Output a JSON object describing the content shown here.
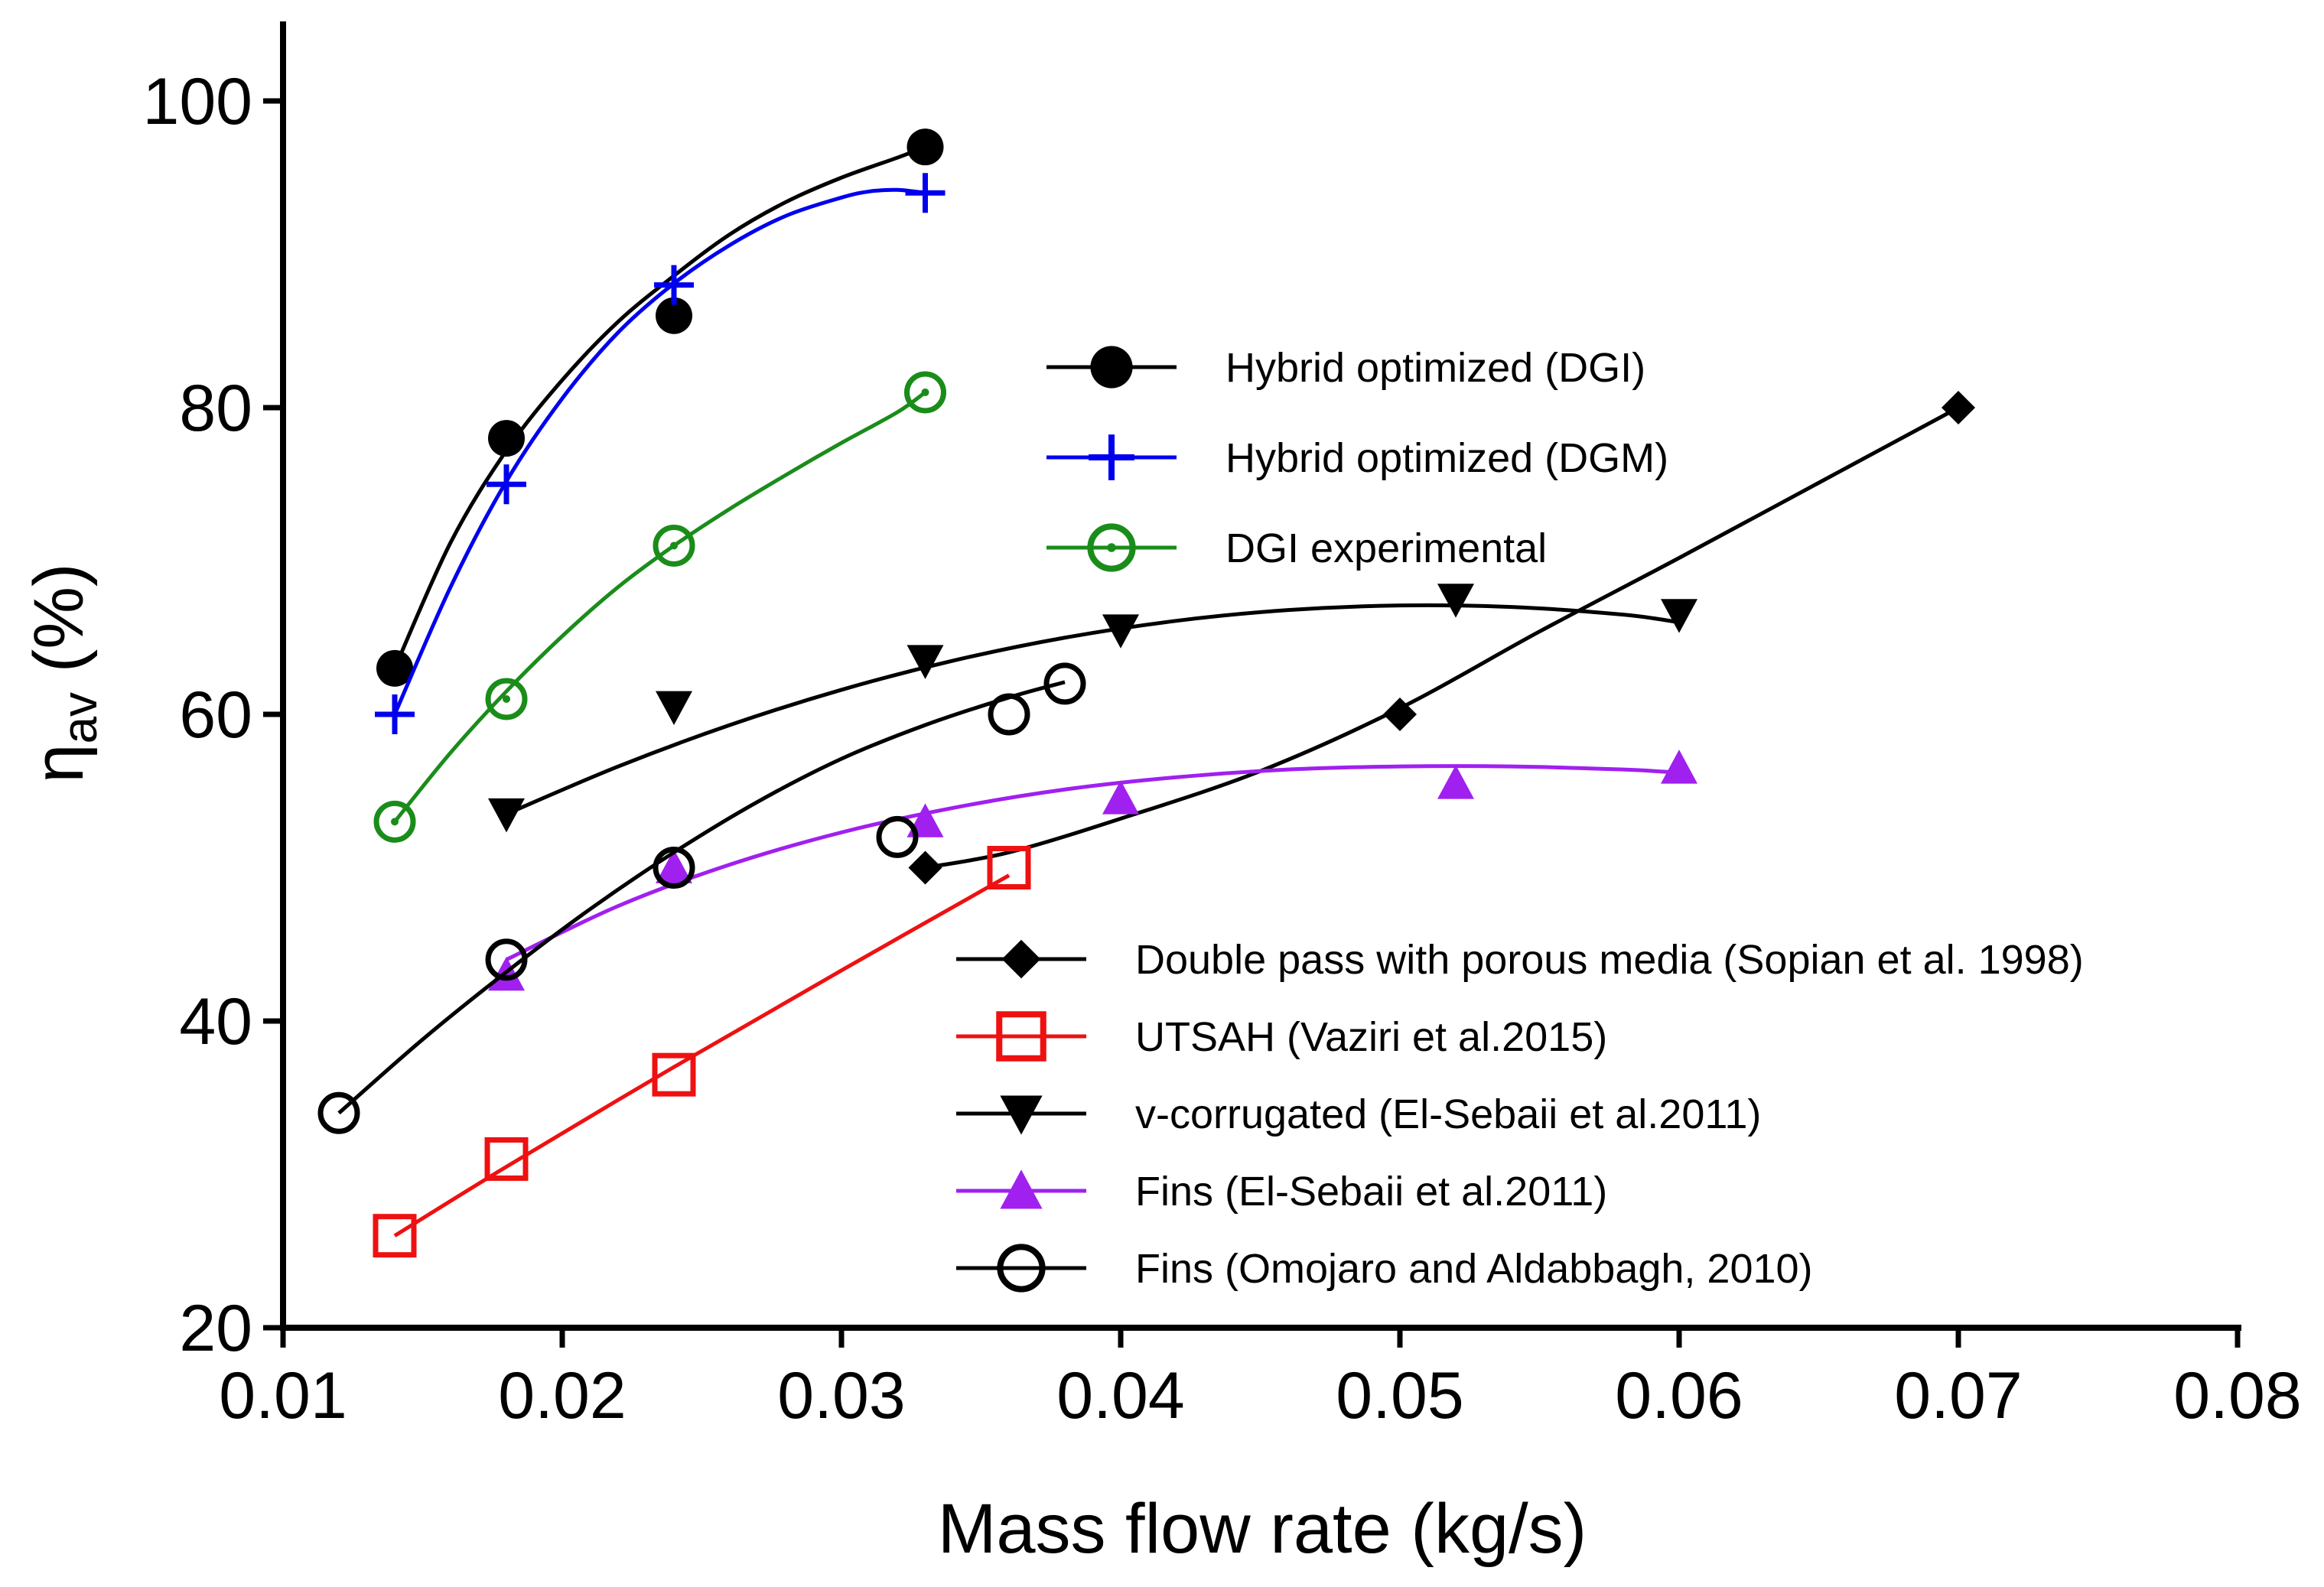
{
  "chart_data": {
    "type": "scatter",
    "xlabel": "Mass flow rate (kg/s)",
    "ylabel": "η",
    "ylabel_sub": "av",
    "ylabel_unit": " (%)",
    "xlim": [
      0.01,
      0.08
    ],
    "ylim": [
      20,
      100
    ],
    "xticks": [
      "0.01",
      "0.02",
      "0.03",
      "0.04",
      "0.05",
      "0.06",
      "0.07",
      "0.08"
    ],
    "yticks": [
      "20",
      "40",
      "60",
      "80",
      "100"
    ],
    "xtick_values": [
      0.01,
      0.02,
      0.03,
      0.04,
      0.05,
      0.06,
      0.07,
      0.08
    ],
    "ytick_values": [
      20,
      40,
      60,
      80,
      100
    ],
    "grid": false,
    "series": [
      {
        "name": "Hybrid optimized (DGI)",
        "color": "#000000",
        "marker": "filled-circle",
        "x": [
          0.014,
          0.018,
          0.024,
          0.033
        ],
        "y": [
          63,
          78,
          86,
          97
        ],
        "fit": [
          [
            0.014,
            63
          ],
          [
            0.016,
            71.2
          ],
          [
            0.018,
            77.2
          ],
          [
            0.02,
            81.8
          ],
          [
            0.022,
            85.6
          ],
          [
            0.024,
            88.6
          ],
          [
            0.026,
            91.3
          ],
          [
            0.028,
            93.4
          ],
          [
            0.03,
            95.0
          ],
          [
            0.032,
            96.3
          ],
          [
            0.033,
            97
          ]
        ]
      },
      {
        "name": "Hybrid optimized (DGM)",
        "color": "#0000ee",
        "marker": "plus",
        "x": [
          0.014,
          0.018,
          0.024,
          0.033
        ],
        "y": [
          60,
          75,
          88,
          94
        ],
        "fit": [
          [
            0.014,
            60
          ],
          [
            0.016,
            68.3
          ],
          [
            0.018,
            75.2
          ],
          [
            0.02,
            80.6
          ],
          [
            0.022,
            84.9
          ],
          [
            0.024,
            88.1
          ],
          [
            0.026,
            90.6
          ],
          [
            0.028,
            92.5
          ],
          [
            0.03,
            93.7
          ],
          [
            0.031,
            94.1
          ],
          [
            0.032,
            94.2
          ],
          [
            0.033,
            94
          ]
        ]
      },
      {
        "name": "DGI experimental",
        "color": "#1a8c1a",
        "marker": "dotted-circle",
        "x": [
          0.014,
          0.018,
          0.024,
          0.033
        ],
        "y": [
          53,
          61,
          71,
          81
        ],
        "fit": [
          [
            0.014,
            53
          ],
          [
            0.016,
            57.5
          ],
          [
            0.018,
            61.5
          ],
          [
            0.02,
            65.1
          ],
          [
            0.022,
            68.3
          ],
          [
            0.024,
            71.0
          ],
          [
            0.026,
            73.4
          ],
          [
            0.028,
            75.6
          ],
          [
            0.03,
            77.7
          ],
          [
            0.032,
            79.7
          ],
          [
            0.033,
            81
          ]
        ]
      },
      {
        "name": "Double pass with porous media (Sopian et al. 1998)",
        "color": "#000000",
        "marker": "filled-diamond",
        "x": [
          0.033,
          0.05,
          0.07
        ],
        "y": [
          50,
          60,
          80
        ],
        "fit": [
          [
            0.033,
            50
          ],
          [
            0.036,
            51
          ],
          [
            0.04,
            53.2
          ],
          [
            0.045,
            56.3
          ],
          [
            0.05,
            60.4
          ],
          [
            0.055,
            65.4
          ],
          [
            0.06,
            70.2
          ],
          [
            0.065,
            75.1
          ],
          [
            0.07,
            80
          ]
        ]
      },
      {
        "name": "UTSAH (Vaziri et al.2015)",
        "color": "#ee1111",
        "marker": "open-square",
        "x": [
          0.014,
          0.018,
          0.024,
          0.036
        ],
        "y": [
          26,
          31,
          36.5,
          50
        ],
        "fit": [
          [
            0.014,
            26
          ],
          [
            0.018,
            30.5
          ],
          [
            0.024,
            37
          ],
          [
            0.03,
            43.3
          ],
          [
            0.036,
            49.5
          ]
        ]
      },
      {
        "name": "v-corrugated (El-Sebaii et al.2011)",
        "color": "#000000",
        "marker": "filled-triangle-down",
        "x": [
          0.018,
          0.024,
          0.033,
          0.04,
          0.052,
          0.06
        ],
        "y": [
          53.5,
          60.5,
          63.5,
          65.5,
          67.5,
          66.5
        ],
        "fit": [
          [
            0.018,
            53.5
          ],
          [
            0.022,
            56.6
          ],
          [
            0.026,
            59.3
          ],
          [
            0.03,
            61.6
          ],
          [
            0.034,
            63.5
          ],
          [
            0.038,
            65
          ],
          [
            0.042,
            66.1
          ],
          [
            0.046,
            66.8
          ],
          [
            0.05,
            67.1
          ],
          [
            0.054,
            67
          ],
          [
            0.058,
            66.5
          ],
          [
            0.06,
            66
          ]
        ]
      },
      {
        "name": "Fins (El-Sebaii et al.2011)",
        "color": "#a020f0",
        "marker": "filled-triangle-up",
        "x": [
          0.018,
          0.024,
          0.033,
          0.04,
          0.052,
          0.06
        ],
        "y": [
          43,
          50,
          53,
          54.5,
          55.5,
          56.5
        ],
        "fit": [
          [
            0.018,
            44
          ],
          [
            0.022,
            47.5
          ],
          [
            0.026,
            50.2
          ],
          [
            0.03,
            52.3
          ],
          [
            0.034,
            53.9
          ],
          [
            0.038,
            55.1
          ],
          [
            0.042,
            55.9
          ],
          [
            0.046,
            56.4
          ],
          [
            0.05,
            56.6
          ],
          [
            0.054,
            56.6
          ],
          [
            0.058,
            56.4
          ],
          [
            0.06,
            56.2
          ]
        ]
      },
      {
        "name": "Fins (Omojaro and Aldabbagh, 2010)",
        "color": "#000000",
        "marker": "open-circle",
        "x": [
          0.012,
          0.018,
          0.024,
          0.032,
          0.036,
          0.038
        ],
        "y": [
          34,
          44,
          50,
          52,
          60,
          62
        ],
        "fit": [
          [
            0.012,
            34
          ],
          [
            0.015,
            38.8
          ],
          [
            0.018,
            43.2
          ],
          [
            0.021,
            47.3
          ],
          [
            0.024,
            51
          ],
          [
            0.027,
            54.3
          ],
          [
            0.03,
            57.1
          ],
          [
            0.033,
            59.3
          ],
          [
            0.036,
            61.1
          ],
          [
            0.038,
            62.1
          ]
        ]
      }
    ],
    "legend_groups": [
      {
        "location": "upper-middle",
        "series_indices": [
          0,
          1,
          2
        ]
      },
      {
        "location": "lower-right",
        "series_indices": [
          3,
          4,
          5,
          6,
          7
        ]
      }
    ]
  }
}
